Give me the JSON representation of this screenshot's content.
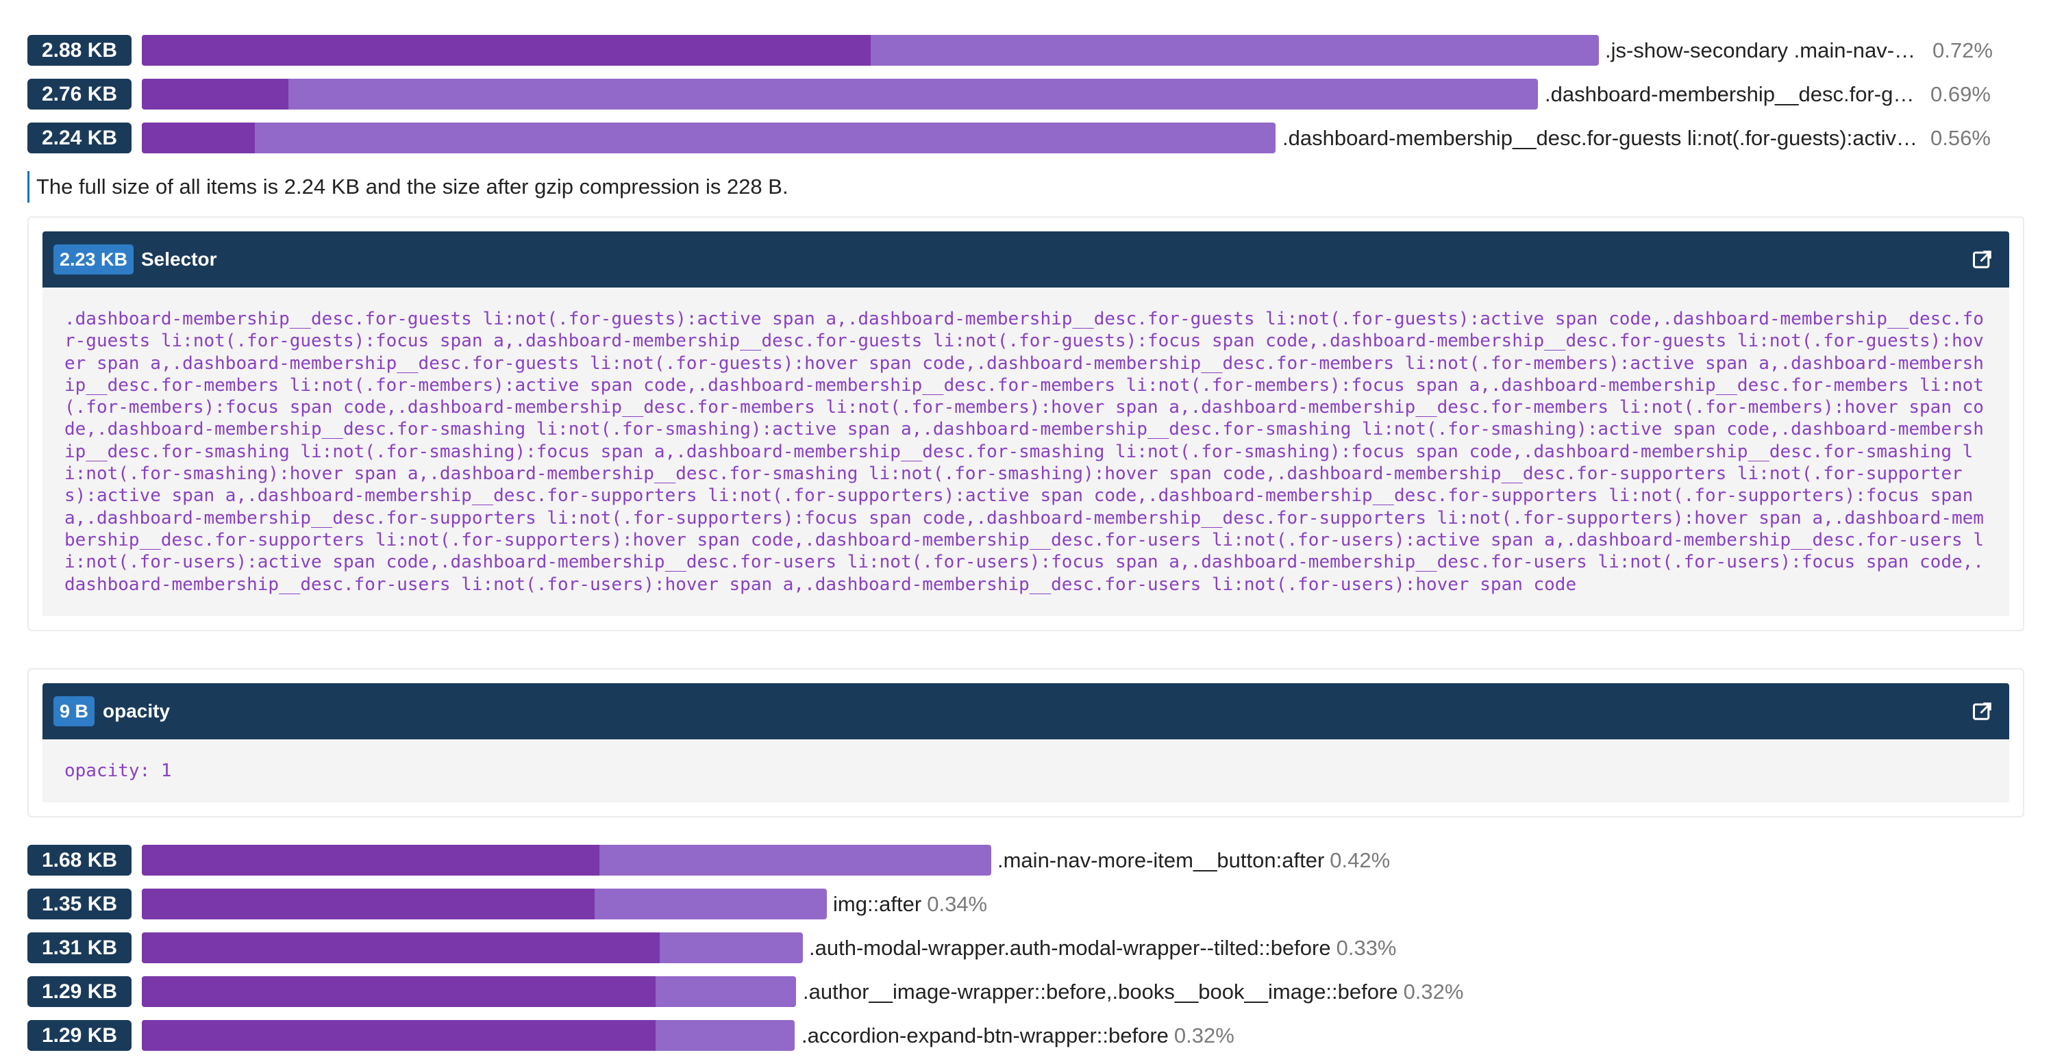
{
  "rows_top": [
    {
      "size": "2.88 KB",
      "label": ".js-show-secondary .main-nav-more-item__content .main-nav-more-item__link",
      "pct": "0.72%",
      "bar_fraction": 0.72,
      "gzip_fraction": 0.5
    },
    {
      "size": "2.76 KB",
      "label": ".dashboard-membership__desc.for-guests li:not(.for-guests):active span a",
      "pct": "0.69%",
      "bar_fraction": 0.69,
      "gzip_fraction": 0.105
    },
    {
      "size": "2.24 KB",
      "label": ".dashboard-membership__desc.for-guests li:not(.for-guests):active span a,.dashboard-membership__desc.for-guests",
      "pct": "0.56%",
      "bar_fraction": 0.56,
      "gzip_fraction": 0.1
    }
  ],
  "summary": "The full size of all items is 2.24 KB and the size after gzip compression is 228 B.",
  "cards": [
    {
      "size": "2.23 KB",
      "title": "Selector",
      "code": ".dashboard-membership__desc.for-guests li:not(.for-guests):active span a,.dashboard-membership__desc.for-guests li:not(.for-guests):active span code,.dashboard-membership__desc.for-guests li:not(.for-guests):focus span a,.dashboard-membership__desc.for-guests li:not(.for-guests):focus span code,.dashboard-membership__desc.for-guests li:not(.for-guests):hover span a,.dashboard-membership__desc.for-guests li:not(.for-guests):hover span code,.dashboard-membership__desc.for-members li:not(.for-members):active span a,.dashboard-membership__desc.for-members li:not(.for-members):active span code,.dashboard-membership__desc.for-members li:not(.for-members):focus span a,.dashboard-membership__desc.for-members li:not(.for-members):focus span code,.dashboard-membership__desc.for-members li:not(.for-members):hover span a,.dashboard-membership__desc.for-members li:not(.for-members):hover span code,.dashboard-membership__desc.for-smashing li:not(.for-smashing):active span a,.dashboard-membership__desc.for-smashing li:not(.for-smashing):active span code,.dashboard-membership__desc.for-smashing li:not(.for-smashing):focus span a,.dashboard-membership__desc.for-smashing li:not(.for-smashing):focus span code,.dashboard-membership__desc.for-smashing li:not(.for-smashing):hover span a,.dashboard-membership__desc.for-smashing li:not(.for-smashing):hover span code,.dashboard-membership__desc.for-supporters li:not(.for-supporters):active span a,.dashboard-membership__desc.for-supporters li:not(.for-supporters):active span code,.dashboard-membership__desc.for-supporters li:not(.for-supporters):focus span a,.dashboard-membership__desc.for-supporters li:not(.for-supporters):focus span code,.dashboard-membership__desc.for-supporters li:not(.for-supporters):hover span a,.dashboard-membership__desc.for-supporters li:not(.for-supporters):hover span code,.dashboard-membership__desc.for-users li:not(.for-users):active span a,.dashboard-membership__desc.for-users li:not(.for-users):active span code,.dashboard-membership__desc.for-users li:not(.for-users):focus span a,.dashboard-membership__desc.for-users li:not(.for-users):focus span code,.dashboard-membership__desc.for-users li:not(.for-users):hover span a,.dashboard-membership__desc.for-users li:not(.for-users):hover span code"
    },
    {
      "size": "9 B",
      "title": "opacity",
      "code": "opacity: 1"
    }
  ],
  "rows_bottom": [
    {
      "size": "1.68 KB",
      "label": ".main-nav-more-item__button:after",
      "pct": "0.42%",
      "bar_fraction": 0.42,
      "gzip_fraction": 0.54
    },
    {
      "size": "1.35 KB",
      "label": "img::after",
      "pct": "0.34%",
      "bar_fraction": 0.34,
      "gzip_fraction": 0.66
    },
    {
      "size": "1.31 KB",
      "label": ".auth-modal-wrapper.auth-modal-wrapper--tilted::before",
      "pct": "0.33%",
      "bar_fraction": 0.33,
      "gzip_fraction": 0.79
    },
    {
      "size": "1.29 KB",
      "label": ".author__image-wrapper::before,.books__book__image::before",
      "pct": "0.32%",
      "bar_fraction": 0.32,
      "gzip_fraction": 0.78
    },
    {
      "size": "1.29 KB",
      "label": ".accordion-expand-btn-wrapper::before",
      "pct": "0.32%",
      "bar_fraction": 0.32,
      "gzip_fraction": 0.78
    }
  ],
  "icons": {
    "card_action": "external-link-icon"
  },
  "colors": {
    "badge": "#1a3a5a",
    "bar": "#9268c9",
    "bar_gzip": "#7a37aa",
    "code": "#8b40c2",
    "kb_badge": "#2e7dc6"
  }
}
